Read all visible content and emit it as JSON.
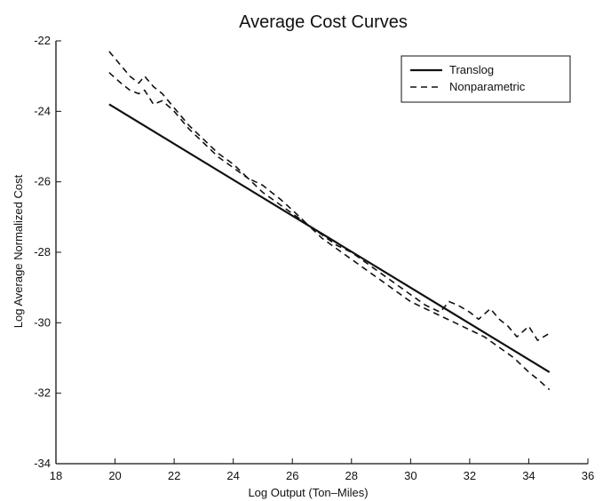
{
  "chart_data": {
    "type": "line",
    "title": "Average Cost Curves",
    "xlabel": "Log Output (Ton–Miles)",
    "ylabel": "Log Average Normalized Cost",
    "xlim": [
      18,
      36
    ],
    "ylim": [
      -34,
      -22
    ],
    "xticks": [
      18,
      20,
      22,
      24,
      26,
      28,
      30,
      32,
      34,
      36
    ],
    "yticks": [
      -34,
      -32,
      -30,
      -28,
      -26,
      -24,
      -22
    ],
    "grid": false,
    "legend_position": "top-right",
    "series": [
      {
        "name": "Translog",
        "style": "solid",
        "x": [
          19.8,
          34.7
        ],
        "y": [
          -23.8,
          -31.4
        ]
      },
      {
        "name": "Nonparametric",
        "style": "dashed",
        "x": [
          19.8,
          20.2,
          20.5,
          20.8,
          21.0,
          21.3,
          21.6,
          22.0,
          22.5,
          23.0,
          23.5,
          24.0,
          24.5,
          25.0,
          25.3,
          25.6,
          26.0,
          26.5,
          27.0,
          27.5,
          28.0,
          28.5,
          29.0,
          29.5,
          30.0,
          30.5,
          31.0,
          31.3,
          31.6,
          32.0,
          32.3,
          32.7,
          33.0,
          33.3,
          33.6,
          34.0,
          34.3,
          34.7
        ],
        "y": [
          -22.3,
          -22.7,
          -23.0,
          -23.2,
          -23.0,
          -23.3,
          -23.5,
          -23.9,
          -24.4,
          -24.8,
          -25.2,
          -25.5,
          -25.9,
          -26.1,
          -26.3,
          -26.5,
          -26.8,
          -27.2,
          -27.5,
          -27.8,
          -28.0,
          -28.3,
          -28.6,
          -28.9,
          -29.2,
          -29.5,
          -29.7,
          -29.4,
          -29.5,
          -29.7,
          -29.9,
          -29.6,
          -29.9,
          -30.1,
          -30.4,
          -30.1,
          -30.5,
          -30.3
        ]
      },
      {
        "name": "Nonparametric",
        "style": "dashed",
        "x": [
          19.8,
          20.2,
          20.5,
          20.8,
          21.0,
          21.3,
          21.6,
          22.0,
          22.5,
          23.0,
          23.5,
          24.0,
          24.5,
          25.0,
          25.5,
          26.0,
          26.5,
          27.0,
          27.5,
          28.0,
          28.5,
          29.0,
          29.5,
          30.0,
          30.5,
          31.0,
          31.5,
          32.0,
          32.5,
          33.0,
          33.5,
          34.0,
          34.3,
          34.7
        ],
        "y": [
          -22.9,
          -23.2,
          -23.4,
          -23.5,
          -23.4,
          -23.8,
          -23.7,
          -24.0,
          -24.5,
          -24.9,
          -25.3,
          -25.6,
          -25.9,
          -26.3,
          -26.6,
          -26.9,
          -27.2,
          -27.6,
          -27.9,
          -28.2,
          -28.5,
          -28.8,
          -29.1,
          -29.4,
          -29.6,
          -29.8,
          -30.0,
          -30.2,
          -30.4,
          -30.7,
          -31.0,
          -31.4,
          -31.6,
          -31.9
        ]
      }
    ]
  }
}
